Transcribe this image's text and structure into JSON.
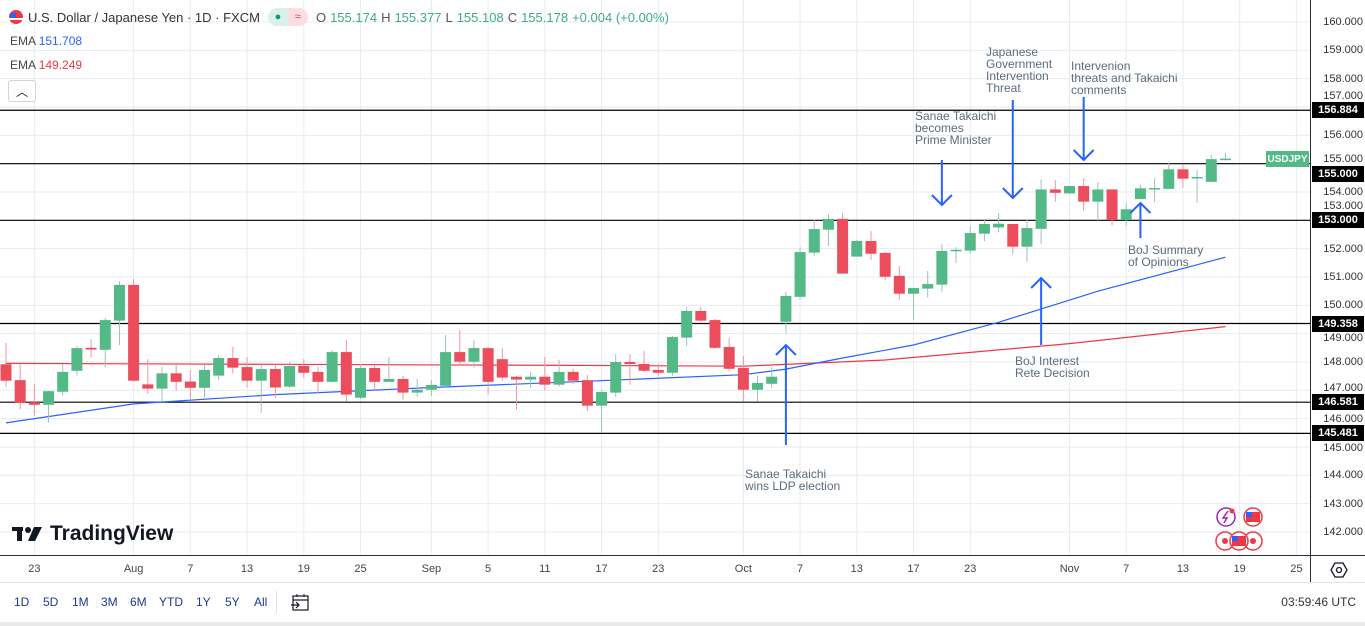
{
  "header": {
    "title": "U.S. Dollar / Japanese Yen · 1D · FXCM",
    "ohlc": {
      "o_label": "O",
      "o": "155.174",
      "h_label": "H",
      "h": "155.377",
      "l_label": "L",
      "l": "155.108",
      "c_label": "C",
      "c": "155.178",
      "change": "+0.004 (+0.00%)"
    },
    "market_status_icon": "market-open-dot",
    "delay_icon": "approx-icon",
    "collapse_icon": "chevron-up-icon"
  },
  "indicators": [
    {
      "label": "EMA",
      "value": "151.708",
      "color": "#2962ff"
    },
    {
      "label": "EMA",
      "value": "149.249",
      "color": "#f23645"
    }
  ],
  "colors": {
    "up": "#53b987",
    "down": "#eb4d5c",
    "up_wick": "#9fbfbf",
    "down_wick": "#f2949e",
    "level_line": "#000000",
    "arrow": "#2962ff",
    "grid": "#e6ecf1"
  },
  "chart_data": {
    "type": "candlestick",
    "symbol": "USDJPY",
    "ylim": [
      141.3,
      160.7
    ],
    "grid": true,
    "y_ticks": [
      "142.000",
      "143.000",
      "144.000",
      "145.000",
      "146.000",
      "147.000",
      "148.000",
      "149.000",
      "150.000",
      "151.000",
      "152.000",
      "153.000",
      "154.000",
      "155.000",
      "156.000",
      "157.000",
      "158.000",
      "159.000",
      "160.000"
    ],
    "x_ticks": [
      {
        "label": "23",
        "date": "Jul 23"
      },
      {
        "label": "Aug",
        "date": "Aug 1"
      },
      {
        "label": "7",
        "date": "Aug 7"
      },
      {
        "label": "13",
        "date": "Aug 13"
      },
      {
        "label": "19",
        "date": "Aug 19"
      },
      {
        "label": "25",
        "date": "Aug 25"
      },
      {
        "label": "Sep",
        "date": "Sep 1"
      },
      {
        "label": "5",
        "date": "Sep 5"
      },
      {
        "label": "11",
        "date": "Sep 11"
      },
      {
        "label": "17",
        "date": "Sep 17"
      },
      {
        "label": "23",
        "date": "Sep 23"
      },
      {
        "label": "Oct",
        "date": "Oct 1"
      },
      {
        "label": "7",
        "date": "Oct 7"
      },
      {
        "label": "13",
        "date": "Oct 13"
      },
      {
        "label": "17",
        "date": "Oct 17"
      },
      {
        "label": "23",
        "date": "Oct 23"
      },
      {
        "label": "Nov",
        "date": "Nov 3"
      },
      {
        "label": "7",
        "date": "Nov 7"
      },
      {
        "label": "13",
        "date": "Nov 13"
      },
      {
        "label": "19",
        "date": "Nov 19"
      },
      {
        "label": "25",
        "date": "Nov 25"
      }
    ],
    "candles_fields": [
      "date",
      "open",
      "high",
      "low",
      "close"
    ],
    "candles": [
      [
        "Jul 21",
        147.92,
        148.67,
        147.12,
        147.34
      ],
      [
        "Jul 22",
        147.36,
        147.95,
        146.33,
        146.56
      ],
      [
        "Jul 23",
        146.58,
        147.22,
        146.1,
        146.49
      ],
      [
        "Jul 24",
        146.49,
        146.98,
        145.86,
        146.97
      ],
      [
        "Jul 25",
        146.95,
        147.92,
        146.81,
        147.65
      ],
      [
        "Jul 28",
        147.69,
        148.56,
        147.52,
        148.49
      ],
      [
        "Jul 29",
        148.5,
        148.81,
        148.15,
        148.44
      ],
      [
        "Jul 30",
        148.43,
        149.55,
        147.8,
        149.48
      ],
      [
        "Jul 31",
        149.46,
        150.86,
        148.6,
        150.72
      ],
      [
        "Aug 1",
        150.72,
        150.93,
        147.3,
        147.34
      ],
      [
        "Aug 4",
        147.21,
        148.1,
        146.87,
        147.06
      ],
      [
        "Aug 5",
        147.06,
        147.82,
        146.6,
        147.6
      ],
      [
        "Aug 6",
        147.6,
        147.89,
        146.99,
        147.3
      ],
      [
        "Aug 7",
        147.31,
        147.72,
        146.7,
        147.09
      ],
      [
        "Aug 8",
        147.09,
        147.89,
        146.74,
        147.72
      ],
      [
        "Aug 11",
        147.52,
        148.25,
        147.37,
        148.14
      ],
      [
        "Aug 12",
        148.14,
        148.53,
        147.59,
        147.8
      ],
      [
        "Aug 13",
        147.82,
        148.18,
        147.09,
        147.34
      ],
      [
        "Aug 14",
        147.34,
        147.97,
        146.21,
        147.75
      ],
      [
        "Aug 15",
        147.75,
        147.87,
        146.74,
        147.1
      ],
      [
        "Aug 18",
        147.13,
        148.0,
        147.09,
        147.86
      ],
      [
        "Aug 19",
        147.86,
        148.1,
        147.45,
        147.62
      ],
      [
        "Aug 20",
        147.65,
        147.83,
        146.88,
        147.3
      ],
      [
        "Aug 21",
        147.3,
        148.42,
        147.27,
        148.35
      ],
      [
        "Aug 22",
        148.35,
        148.78,
        146.6,
        146.85
      ],
      [
        "Aug 25",
        146.74,
        147.93,
        146.7,
        147.79
      ],
      [
        "Aug 26",
        147.79,
        147.89,
        146.99,
        147.3
      ],
      [
        "Aug 27",
        147.3,
        148.18,
        147.3,
        147.4
      ],
      [
        "Aug 28",
        147.4,
        147.51,
        146.67,
        146.92
      ],
      [
        "Aug 29",
        146.92,
        147.4,
        146.77,
        147.02
      ],
      [
        "Sep 1",
        147.02,
        147.36,
        146.81,
        147.19
      ],
      [
        "Sep 2",
        147.16,
        148.95,
        147.09,
        148.35
      ],
      [
        "Sep 3",
        148.35,
        149.13,
        147.89,
        148.01
      ],
      [
        "Sep 4",
        148.01,
        148.78,
        147.8,
        148.49
      ],
      [
        "Sep 5",
        148.49,
        148.53,
        146.85,
        147.3
      ],
      [
        "Sep 8",
        148.1,
        148.49,
        147.34,
        147.45
      ],
      [
        "Sep 9",
        147.48,
        147.51,
        146.32,
        147.38
      ],
      [
        "Sep 10",
        147.38,
        147.65,
        147.09,
        147.48
      ],
      [
        "Sep 11",
        147.48,
        148.18,
        146.99,
        147.2
      ],
      [
        "Sep 12",
        147.2,
        148.07,
        147.13,
        147.65
      ],
      [
        "Sep 15",
        147.65,
        147.75,
        147.22,
        147.34
      ],
      [
        "Sep 16",
        147.36,
        147.54,
        146.28,
        146.46
      ],
      [
        "Sep 17",
        146.46,
        147.02,
        145.5,
        146.94
      ],
      [
        "Sep 18",
        146.92,
        148.28,
        146.77,
        148.0
      ],
      [
        "Sep 19",
        148.0,
        148.28,
        147.2,
        147.93
      ],
      [
        "Sep 22",
        147.93,
        148.39,
        147.65,
        147.69
      ],
      [
        "Sep 23",
        147.72,
        147.93,
        147.51,
        147.62
      ],
      [
        "Sep 24",
        147.62,
        148.92,
        147.52,
        148.88
      ],
      [
        "Sep 25",
        148.86,
        149.95,
        148.57,
        149.8
      ],
      [
        "Sep 26",
        149.8,
        149.95,
        149.42,
        149.46
      ],
      [
        "Sep 29",
        149.48,
        149.52,
        148.46,
        148.5
      ],
      [
        "Sep 30",
        148.53,
        148.85,
        147.69,
        147.76
      ],
      [
        "Oct 1",
        147.79,
        148.22,
        146.6,
        147.02
      ],
      [
        "Oct 2",
        147.02,
        147.52,
        146.6,
        147.26
      ],
      [
        "Oct 3",
        147.23,
        147.82,
        147.09,
        147.48
      ],
      [
        "Oct 6",
        149.42,
        150.47,
        149.0,
        150.33
      ],
      [
        "Oct 7",
        150.3,
        152.05,
        150.21,
        151.88
      ],
      [
        "Oct 8",
        151.86,
        153.01,
        151.75,
        152.69
      ],
      [
        "Oct 9",
        152.67,
        153.22,
        152.1,
        153.05
      ],
      [
        "Oct 10",
        153.05,
        153.27,
        151.12,
        151.12
      ],
      [
        "Oct 13",
        151.72,
        152.31,
        151.72,
        152.27
      ],
      [
        "Oct 14",
        152.27,
        152.62,
        151.61,
        151.82
      ],
      [
        "Oct 15",
        151.85,
        151.89,
        150.9,
        151.01
      ],
      [
        "Oct 16",
        151.04,
        151.39,
        150.2,
        150.41
      ],
      [
        "Oct 17",
        150.41,
        150.61,
        149.48,
        150.61
      ],
      [
        "Oct 20",
        150.59,
        151.21,
        150.27,
        150.75
      ],
      [
        "Oct 21",
        150.73,
        152.16,
        150.48,
        151.92
      ],
      [
        "Oct 22",
        151.92,
        152.05,
        151.5,
        151.96
      ],
      [
        "Oct 23",
        151.93,
        152.8,
        151.82,
        152.55
      ],
      [
        "Oct 24",
        152.53,
        153.05,
        152.26,
        152.87
      ],
      [
        "Oct 27",
        152.75,
        153.26,
        152.58,
        152.88
      ],
      [
        "Oct 28",
        152.87,
        152.87,
        151.8,
        152.07
      ],
      [
        "Oct 29",
        152.07,
        153.01,
        151.54,
        152.73
      ],
      [
        "Oct 30",
        152.7,
        154.45,
        152.17,
        154.09
      ],
      [
        "Oct 31",
        154.09,
        154.42,
        153.66,
        153.97
      ],
      [
        "Nov 3",
        153.95,
        154.22,
        153.94,
        154.21
      ],
      [
        "Nov 4",
        154.21,
        154.49,
        153.34,
        153.66
      ],
      [
        "Nov 5",
        153.66,
        154.35,
        152.99,
        154.09
      ],
      [
        "Nov 6",
        154.09,
        154.09,
        152.83,
        153.01
      ],
      [
        "Nov 7",
        153.01,
        153.62,
        152.81,
        153.39
      ],
      [
        "Nov 10",
        153.75,
        154.25,
        153.75,
        154.13
      ],
      [
        "Nov 11",
        154.11,
        154.49,
        153.65,
        154.14
      ],
      [
        "Nov 12",
        154.11,
        155.03,
        154.11,
        154.8
      ],
      [
        "Nov 13",
        154.8,
        154.99,
        154.15,
        154.47
      ],
      [
        "Nov 14",
        154.51,
        154.78,
        153.62,
        154.53
      ],
      [
        "Nov 17",
        154.36,
        155.31,
        154.36,
        155.16
      ],
      [
        "Nov 18",
        155.174,
        155.377,
        155.108,
        155.178
      ]
    ],
    "ema_fast": {
      "value": "151.708",
      "points": [
        [
          "Jul 21",
          145.85
        ],
        [
          "Aug 1",
          146.52
        ],
        [
          "Aug 15",
          146.85
        ],
        [
          "Sep 1",
          147.1
        ],
        [
          "Sep 15",
          147.3
        ],
        [
          "Oct 1",
          147.55
        ],
        [
          "Oct 6",
          147.75
        ],
        [
          "Oct 10",
          148.14
        ],
        [
          "Oct 17",
          148.6
        ],
        [
          "Oct 27",
          149.4
        ],
        [
          "Nov 5",
          150.5
        ],
        [
          "Nov 18",
          151.7
        ]
      ]
    },
    "ema_slow": {
      "value": "149.249",
      "points": [
        [
          "Jul 21",
          147.95
        ],
        [
          "Aug 15",
          147.92
        ],
        [
          "Sep 15",
          147.88
        ],
        [
          "Oct 1",
          147.85
        ],
        [
          "Oct 15",
          148.07
        ],
        [
          "Nov 3",
          148.65
        ],
        [
          "Nov 18",
          149.25
        ]
      ]
    },
    "levels": [
      "156.884",
      "155.000",
      "153.000",
      "149.358",
      "146.581",
      "145.481"
    ],
    "last_price_tag": "USDJPY",
    "annotations": [
      {
        "text": "Sanae Takaichi\nwins LDP election",
        "date": "Oct 6",
        "direction": "up"
      },
      {
        "text": "Sanae Takaichi\nbecomes\nPrime Minister",
        "date": "Oct 21",
        "direction": "down"
      },
      {
        "text": "Japanese\nGovernment\nIntervention\nThreat",
        "date": "Oct 28",
        "direction": "down"
      },
      {
        "text": "Intervenion\nthreats and Takaichi\ncomments",
        "date": "Nov 4",
        "direction": "down"
      },
      {
        "text": "BoJ Summary\nof Opinions",
        "date": "Nov 10",
        "direction": "up"
      },
      {
        "text": "BoJ Interest\nRete Decision",
        "date": "Oct 30",
        "direction": "up"
      }
    ]
  },
  "branding": {
    "logo": "TradingView"
  },
  "bottom_bar": {
    "ranges": [
      "1D",
      "5D",
      "1M",
      "3M",
      "6M",
      "YTD",
      "1Y",
      "5Y",
      "All"
    ],
    "goto_icon": "calendar-goto-icon",
    "clock": "03:59:46 UTC"
  },
  "axis_settings_icon": "settings-hexagon-icon"
}
